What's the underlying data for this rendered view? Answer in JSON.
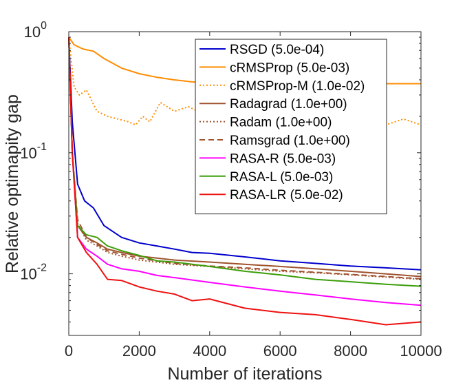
{
  "chart_data": {
    "type": "line",
    "xlabel": "Number of iterations",
    "ylabel": "Relative optimapity gap",
    "xlim": [
      0,
      10000
    ],
    "ylim": [
      0.0031,
      1
    ],
    "yscale": "log",
    "xticks": [
      0,
      2000,
      4000,
      6000,
      8000,
      10000
    ],
    "xtick_labels": [
      "0",
      "2000",
      "4000",
      "6000",
      "8000",
      "10000"
    ],
    "yticks": [
      1,
      0.1,
      0.01
    ],
    "ytick_labels": [
      {
        "base": "10",
        "exp": "0"
      },
      {
        "base": "10",
        "exp": "-1"
      },
      {
        "base": "10",
        "exp": "-2"
      }
    ],
    "grid": false,
    "legend_position": "top-right",
    "series": [
      {
        "name": "RSGD (5.0e-04)",
        "color": "#0000cc",
        "style": "solid",
        "x": [
          0,
          100,
          250,
          450,
          700,
          1000,
          1500,
          2000,
          2500,
          3000,
          3500,
          4000,
          5000,
          6000,
          7000,
          8000,
          9000,
          10000
        ],
        "y": [
          0.9,
          0.18,
          0.055,
          0.04,
          0.035,
          0.025,
          0.02,
          0.018,
          0.017,
          0.016,
          0.015,
          0.0148,
          0.0138,
          0.0128,
          0.0122,
          0.0116,
          0.0112,
          0.0108
        ]
      },
      {
        "name": "cRMSProp (5.0e-03)",
        "color": "#ff8c00",
        "style": "solid",
        "x": [
          0,
          150,
          400,
          700,
          1000,
          1500,
          2000,
          2500,
          3000,
          3500,
          4000,
          5000,
          6000,
          7000,
          8000,
          9000,
          10000
        ],
        "y": [
          0.9,
          0.78,
          0.72,
          0.69,
          0.6,
          0.5,
          0.45,
          0.42,
          0.4,
          0.385,
          0.378,
          0.372,
          0.372,
          0.372,
          0.372,
          0.372,
          0.372
        ]
      },
      {
        "name": "cRMSProp-M (1.0e-02)",
        "color": "#ff8c00",
        "style": "dotted",
        "x": [
          0,
          150,
          300,
          500,
          800,
          1100,
          1400,
          1700,
          1900,
          2100,
          2300,
          2600,
          3000,
          3400,
          3800,
          4200,
          4600,
          5000,
          5500,
          6000,
          6500,
          7000,
          7500,
          8000,
          8500,
          9000,
          9500,
          10000
        ],
        "y": [
          0.9,
          0.35,
          0.3,
          0.33,
          0.22,
          0.2,
          0.19,
          0.18,
          0.17,
          0.2,
          0.18,
          0.26,
          0.22,
          0.24,
          0.21,
          0.23,
          0.2,
          0.22,
          0.19,
          0.21,
          0.18,
          0.2,
          0.19,
          0.18,
          0.2,
          0.17,
          0.19,
          0.17
        ]
      },
      {
        "name": "Radagrad (1.0e+00)",
        "color": "#a0522d",
        "style": "solid",
        "x": [
          0,
          100,
          250,
          500,
          800,
          1100,
          1500,
          2000,
          2500,
          3000,
          4000,
          5000,
          6000,
          7000,
          8000,
          9000,
          10000
        ],
        "y": [
          0.9,
          0.1,
          0.025,
          0.02,
          0.018,
          0.016,
          0.015,
          0.014,
          0.0135,
          0.013,
          0.0125,
          0.012,
          0.0115,
          0.011,
          0.0105,
          0.01,
          0.0095
        ]
      },
      {
        "name": "Radam (1.0e+00)",
        "color": "#a0522d",
        "style": "dotted",
        "x": [
          0,
          100,
          250,
          500,
          800,
          1100,
          1500,
          2000,
          2500,
          3000,
          4000,
          5000,
          6000,
          7000,
          8000,
          9000,
          10000
        ],
        "y": [
          0.9,
          0.1,
          0.026,
          0.019,
          0.017,
          0.015,
          0.014,
          0.013,
          0.0125,
          0.012,
          0.0115,
          0.011,
          0.0105,
          0.0102,
          0.0098,
          0.0094,
          0.009
        ]
      },
      {
        "name": "Ramsgrad (1.0e+00)",
        "color": "#a0522d",
        "style": "dashed",
        "x": [
          0,
          100,
          250,
          500,
          800,
          1100,
          1500,
          2000,
          2500,
          3000,
          4000,
          5000,
          6000,
          7000,
          8000,
          9000,
          10000
        ],
        "y": [
          0.9,
          0.1,
          0.028,
          0.02,
          0.0175,
          0.0155,
          0.0145,
          0.0135,
          0.0128,
          0.0122,
          0.0116,
          0.0112,
          0.0107,
          0.0103,
          0.0099,
          0.0095,
          0.0091
        ]
      },
      {
        "name": "RASA-R (5.0e-03)",
        "color": "#ff00ff",
        "style": "solid",
        "x": [
          0,
          100,
          250,
          500,
          800,
          1100,
          1500,
          2000,
          2500,
          3000,
          4000,
          5000,
          6000,
          7000,
          8000,
          9000,
          10000
        ],
        "y": [
          0.9,
          0.1,
          0.02,
          0.016,
          0.014,
          0.012,
          0.011,
          0.0105,
          0.0097,
          0.0093,
          0.0085,
          0.0078,
          0.0072,
          0.0067,
          0.0062,
          0.0058,
          0.0055
        ]
      },
      {
        "name": "RASA-L (5.0e-03)",
        "color": "#3c9e0b",
        "style": "solid",
        "x": [
          0,
          100,
          250,
          500,
          800,
          1100,
          1500,
          2000,
          2500,
          3000,
          4000,
          5000,
          6000,
          7000,
          8000,
          9000,
          10000
        ],
        "y": [
          0.9,
          0.1,
          0.025,
          0.021,
          0.02,
          0.017,
          0.0155,
          0.0142,
          0.0128,
          0.0125,
          0.0115,
          0.0105,
          0.0098,
          0.009,
          0.0086,
          0.0082,
          0.0079
        ]
      },
      {
        "name": "RASA-LR (5.0e-02)",
        "color": "#ee1111",
        "style": "solid",
        "x": [
          0,
          100,
          250,
          500,
          800,
          1100,
          1500,
          2000,
          2500,
          3000,
          3500,
          4000,
          5000,
          6000,
          7000,
          8000,
          9000,
          10000
        ],
        "y": [
          0.9,
          0.1,
          0.02,
          0.015,
          0.012,
          0.009,
          0.0088,
          0.0078,
          0.0072,
          0.0068,
          0.006,
          0.0062,
          0.0052,
          0.0048,
          0.0046,
          0.0042,
          0.0038,
          0.004
        ]
      }
    ]
  }
}
